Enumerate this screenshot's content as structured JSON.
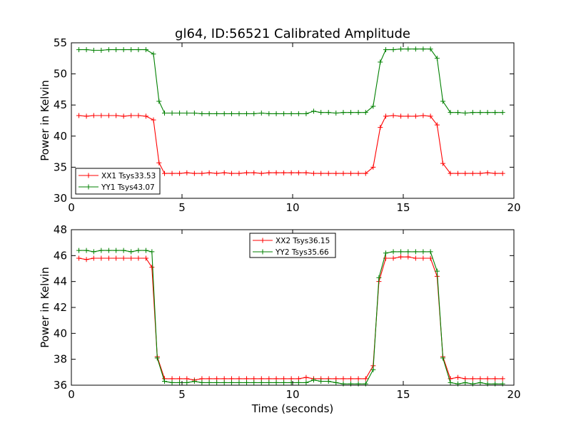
{
  "figure": {
    "title": "gl64, ID:56521 Calibrated Amplitude"
  },
  "chart_data": [
    {
      "type": "line",
      "title": "gl64, ID:56521 Calibrated Amplitude",
      "xlabel": "",
      "ylabel": "Power in Kelvin",
      "xlim": [
        0,
        20
      ],
      "ylim": [
        30,
        55
      ],
      "xticks": [
        "0",
        "5",
        "10",
        "15",
        "20"
      ],
      "yticks": [
        "30",
        "35",
        "40",
        "45",
        "50",
        "55"
      ],
      "grid": false,
      "legend_position": "lower-left",
      "x": [
        0.34,
        0.68,
        1.01,
        1.35,
        1.69,
        2.02,
        2.36,
        2.7,
        3.03,
        3.37,
        3.71,
        3.96,
        4.21,
        4.55,
        4.89,
        5.22,
        5.56,
        5.9,
        6.23,
        6.57,
        6.91,
        7.24,
        7.58,
        7.92,
        8.25,
        8.59,
        8.93,
        9.26,
        9.6,
        9.94,
        10.27,
        10.61,
        10.95,
        11.28,
        11.62,
        11.96,
        12.29,
        12.63,
        12.97,
        13.3,
        13.64,
        13.96,
        14.21,
        14.55,
        14.89,
        15.22,
        15.56,
        15.9,
        16.23,
        16.53,
        16.79,
        17.13,
        17.47,
        17.8,
        18.14,
        18.48,
        18.81,
        19.15,
        19.49
      ],
      "series": [
        {
          "name": "XX1 Tsys33.53",
          "color": "#ff0000",
          "values": [
            43.3,
            43.2,
            43.3,
            43.3,
            43.3,
            43.3,
            43.2,
            43.3,
            43.3,
            43.2,
            42.6,
            35.7,
            34.0,
            34.0,
            34.0,
            34.1,
            34.0,
            34.0,
            34.1,
            34.0,
            34.1,
            34.0,
            34.0,
            34.1,
            34.1,
            34.0,
            34.1,
            34.1,
            34.1,
            34.1,
            34.1,
            34.1,
            34.0,
            34.0,
            34.0,
            34.0,
            34.0,
            34.0,
            34.0,
            34.0,
            35.0,
            41.4,
            43.2,
            43.3,
            43.2,
            43.2,
            43.2,
            43.3,
            43.2,
            41.8,
            35.6,
            34.0,
            34.0,
            34.0,
            34.0,
            34.0,
            34.1,
            34.0,
            34.0
          ]
        },
        {
          "name": "YY1 Tsys43.07",
          "color": "#008000",
          "values": [
            53.9,
            53.9,
            53.8,
            53.8,
            53.9,
            53.9,
            53.9,
            53.9,
            53.9,
            53.9,
            53.2,
            45.6,
            43.7,
            43.7,
            43.7,
            43.7,
            43.7,
            43.6,
            43.6,
            43.6,
            43.6,
            43.6,
            43.6,
            43.6,
            43.6,
            43.7,
            43.6,
            43.6,
            43.6,
            43.6,
            43.6,
            43.6,
            44.0,
            43.8,
            43.8,
            43.7,
            43.8,
            43.8,
            43.8,
            43.8,
            44.8,
            51.9,
            53.9,
            53.9,
            54.0,
            54.0,
            54.0,
            54.0,
            54.0,
            52.5,
            45.6,
            43.8,
            43.8,
            43.7,
            43.8,
            43.8,
            43.8,
            43.8,
            43.8
          ]
        }
      ]
    },
    {
      "type": "line",
      "title": "",
      "xlabel": "Time (seconds)",
      "ylabel": "Power in Kelvin",
      "xlim": [
        0,
        20
      ],
      "ylim": [
        36,
        48
      ],
      "xticks": [
        "0",
        "5",
        "10",
        "15",
        "20"
      ],
      "yticks": [
        "36",
        "38",
        "40",
        "42",
        "44",
        "46",
        "48"
      ],
      "grid": false,
      "legend_position": "top-center",
      "x": [
        0.34,
        0.68,
        1.01,
        1.35,
        1.69,
        2.02,
        2.36,
        2.7,
        3.03,
        3.37,
        3.64,
        3.88,
        4.21,
        4.55,
        4.89,
        5.22,
        5.56,
        5.9,
        6.23,
        6.57,
        6.91,
        7.24,
        7.58,
        7.92,
        8.25,
        8.59,
        8.93,
        9.26,
        9.6,
        9.94,
        10.27,
        10.61,
        10.95,
        11.28,
        11.62,
        11.96,
        12.29,
        12.63,
        12.97,
        13.3,
        13.64,
        13.9,
        14.21,
        14.55,
        14.89,
        15.22,
        15.56,
        15.9,
        16.23,
        16.53,
        16.79,
        17.13,
        17.47,
        17.8,
        18.14,
        18.48,
        18.81,
        19.15,
        19.49
      ],
      "series": [
        {
          "name": "XX2 Tsys36.15",
          "color": "#ff0000",
          "values": [
            45.8,
            45.7,
            45.8,
            45.8,
            45.8,
            45.8,
            45.8,
            45.8,
            45.8,
            45.8,
            45.1,
            38.2,
            36.5,
            36.5,
            36.5,
            36.5,
            36.4,
            36.5,
            36.5,
            36.5,
            36.5,
            36.5,
            36.5,
            36.5,
            36.5,
            36.5,
            36.5,
            36.5,
            36.5,
            36.5,
            36.5,
            36.6,
            36.5,
            36.5,
            36.5,
            36.5,
            36.5,
            36.5,
            36.5,
            36.5,
            37.5,
            44.0,
            45.8,
            45.8,
            45.9,
            45.9,
            45.8,
            45.8,
            45.8,
            44.4,
            38.2,
            36.5,
            36.6,
            36.5,
            36.5,
            36.5,
            36.5,
            36.5,
            36.5
          ]
        },
        {
          "name": "YY2 Tsys35.66",
          "color": "#008000",
          "values": [
            46.4,
            46.4,
            46.3,
            46.4,
            46.4,
            46.4,
            46.4,
            46.3,
            46.4,
            46.4,
            46.3,
            38.1,
            36.3,
            36.2,
            36.2,
            36.2,
            36.3,
            36.2,
            36.2,
            36.2,
            36.2,
            36.2,
            36.2,
            36.2,
            36.2,
            36.2,
            36.2,
            36.2,
            36.2,
            36.2,
            36.2,
            36.2,
            36.4,
            36.3,
            36.3,
            36.2,
            36.1,
            36.1,
            36.1,
            36.1,
            37.2,
            44.3,
            46.2,
            46.3,
            46.3,
            46.3,
            46.3,
            46.3,
            46.3,
            44.8,
            38.1,
            36.2,
            36.1,
            36.2,
            36.1,
            36.2,
            36.1,
            36.1,
            36.1
          ]
        }
      ]
    }
  ]
}
